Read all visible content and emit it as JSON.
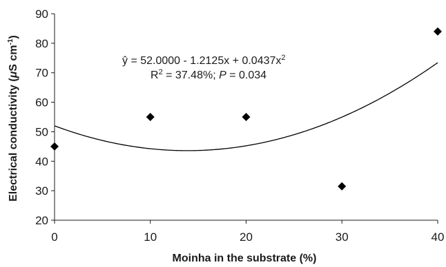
{
  "chart_data": {
    "type": "scatter",
    "xlabel": "Moinha in the substrate (%)",
    "ylabel_main": "Electrical conductivity (",
    "ylabel_mu": "μ",
    "ylabel_unit": "S cm",
    "ylabel_sup": "-1",
    "ylabel_close": ")",
    "xlim": [
      0,
      40
    ],
    "ylim": [
      20,
      90
    ],
    "xticks": [
      0,
      10,
      20,
      30,
      40
    ],
    "yticks": [
      20,
      30,
      40,
      50,
      60,
      70,
      80,
      90
    ],
    "grid": false,
    "marker": "diamond",
    "marker_color": "#000000",
    "points": [
      {
        "x": 0,
        "y": 45
      },
      {
        "x": 10,
        "y": 55
      },
      {
        "x": 20,
        "y": 55
      },
      {
        "x": 30,
        "y": 31.5
      },
      {
        "x": 40,
        "y": 84
      }
    ],
    "fit": {
      "type": "quadratic",
      "coefficients": [
        52.0,
        -1.2125,
        0.0437
      ],
      "color": "#000000"
    },
    "equation": {
      "yhat": "ŷ",
      "text": " = 52.0000 - 1.2125x + 0.0437x",
      "sup": "2"
    },
    "stats": {
      "r_label": "R",
      "r_sup": "2",
      "r_value": " = 37.48%; ",
      "p_label": "P",
      "p_value": " = 0.034"
    }
  }
}
